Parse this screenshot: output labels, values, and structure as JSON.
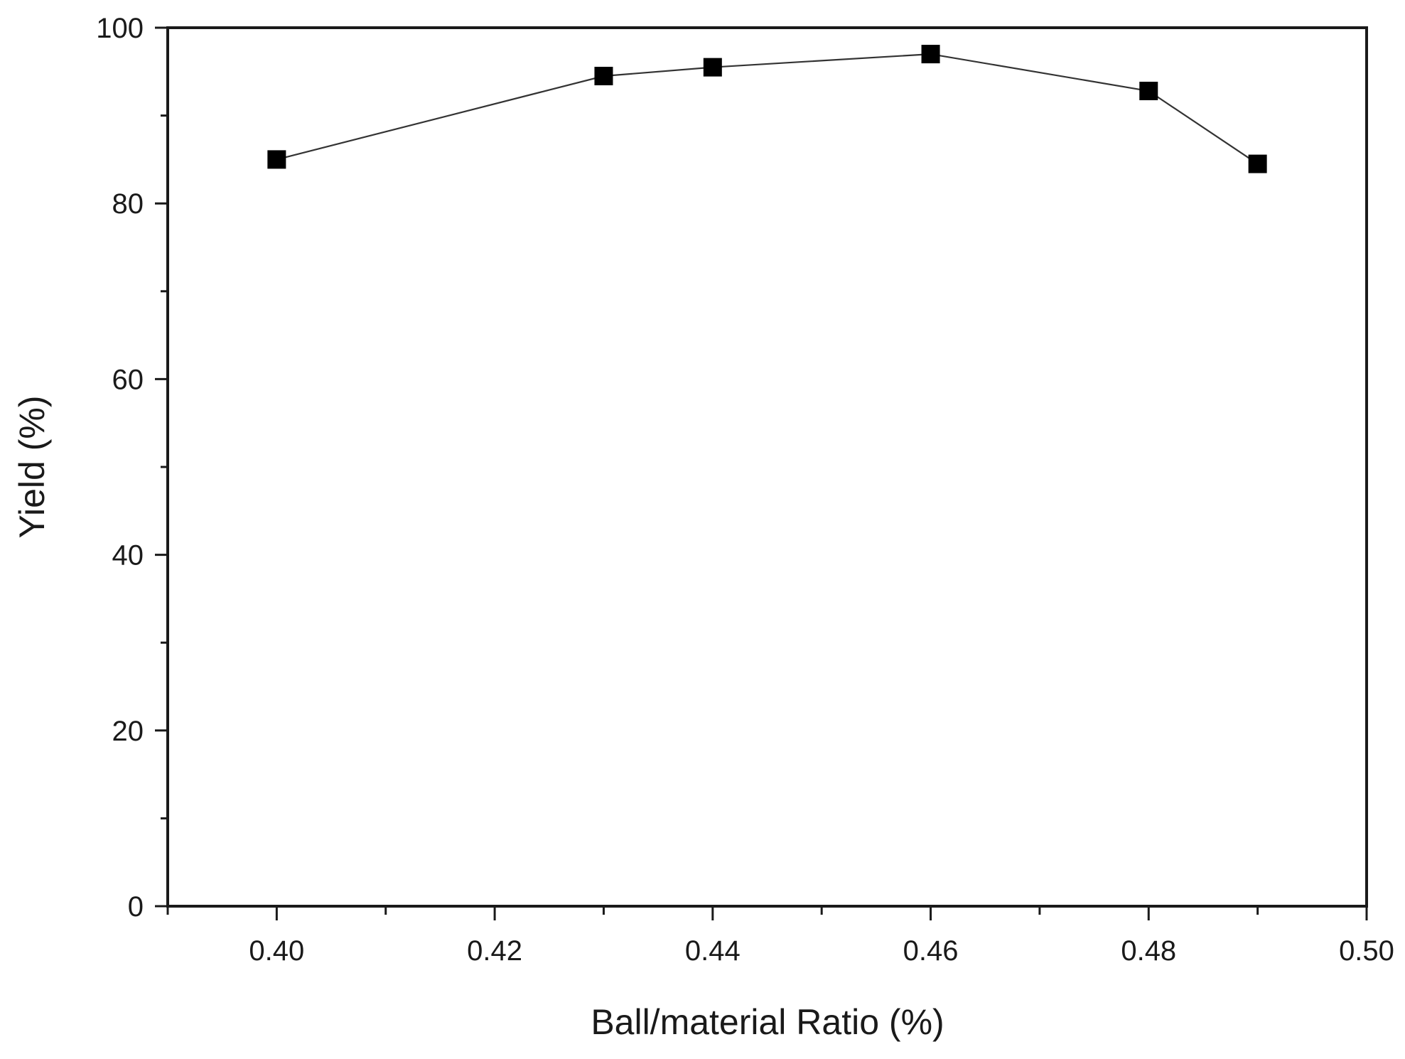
{
  "colors": {
    "axis": "#1a1a1a",
    "line": "#333333",
    "marker": "#000000",
    "background": "#ffffff"
  },
  "chart_data": {
    "type": "line",
    "title": "",
    "xlabel": "Ball/material Ratio (%)",
    "ylabel": "Yield (%)",
    "xlim": [
      0.39,
      0.5
    ],
    "ylim": [
      0,
      100
    ],
    "grid": false,
    "legend": "none",
    "x_ticks": [
      "0.40",
      "0.42",
      "0.44",
      "0.46",
      "0.48",
      "0.50"
    ],
    "y_ticks": [
      "0",
      "20",
      "40",
      "60",
      "80",
      "100"
    ],
    "marker": "square",
    "series": [
      {
        "x": [
          0.4,
          0.43,
          0.44,
          0.46,
          0.48,
          0.49
        ],
        "y": [
          85,
          94.5,
          95.5,
          97,
          92.8,
          84.5
        ]
      }
    ]
  }
}
